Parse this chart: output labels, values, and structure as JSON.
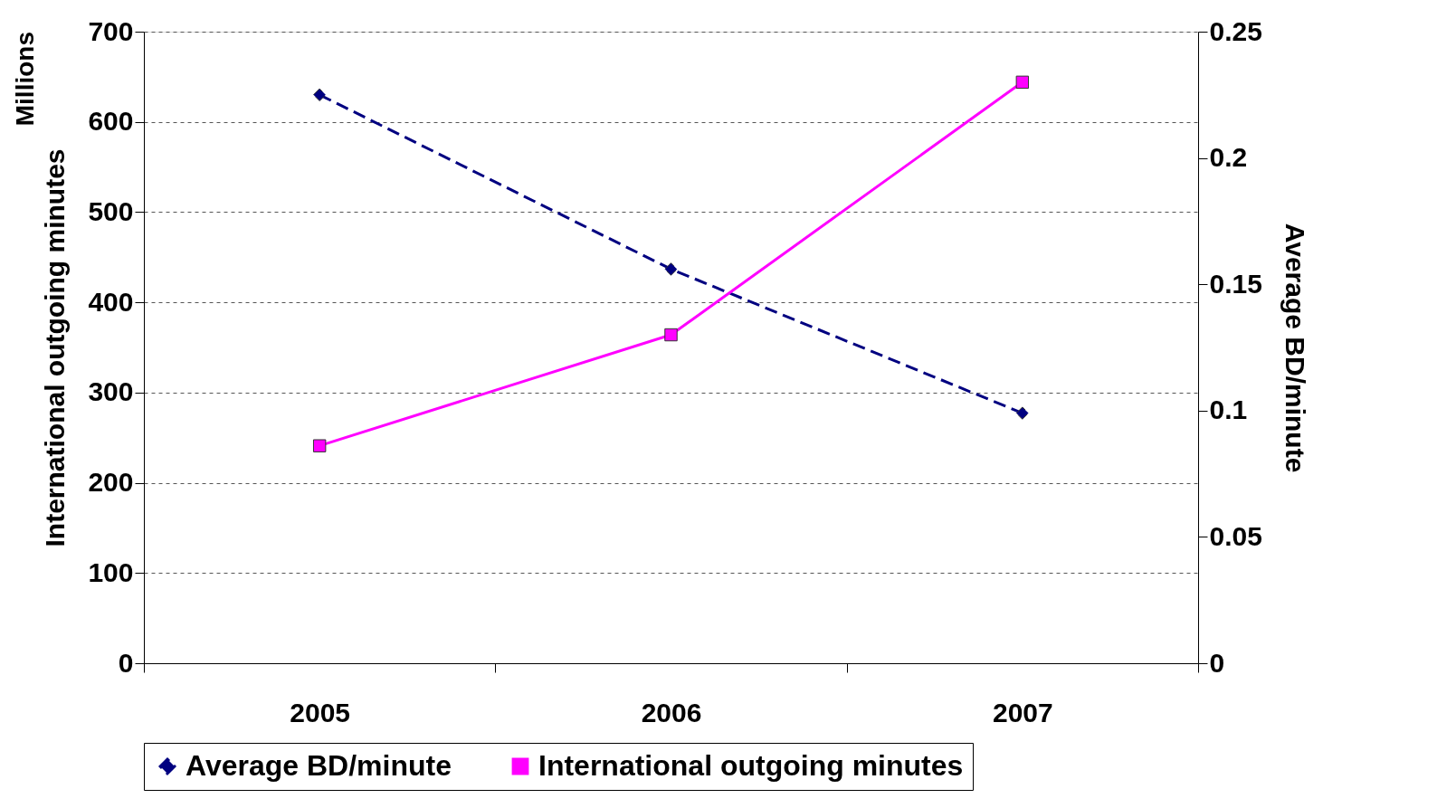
{
  "chart_data": {
    "type": "line",
    "xlabel": null,
    "ylabel": "International outgoing minutes",
    "y2label": "Average BD/minute",
    "annotations": [
      "Millions"
    ],
    "categories": [
      "2005",
      "2006",
      "2007"
    ],
    "series": [
      {
        "name": "Average BD/minute",
        "color": "#000080",
        "values": [
          0.225,
          0.156,
          0.099
        ],
        "axis": "y2",
        "marker": "diamond",
        "line_style": "dashed"
      },
      {
        "name": "International outgoing minutes",
        "color": "#ff00ff",
        "values": [
          241,
          364,
          644
        ],
        "marker": "square",
        "line_style": "solid"
      }
    ],
    "ylim": [
      0,
      700
    ],
    "yticks": [
      0,
      100,
      200,
      300,
      400,
      500,
      600,
      700
    ],
    "y2lim": [
      0,
      0.25
    ],
    "y2ticks": [
      0,
      0.05,
      0.1,
      0.15,
      0.2,
      0.25
    ],
    "grid": "y",
    "legend": "bottom"
  }
}
